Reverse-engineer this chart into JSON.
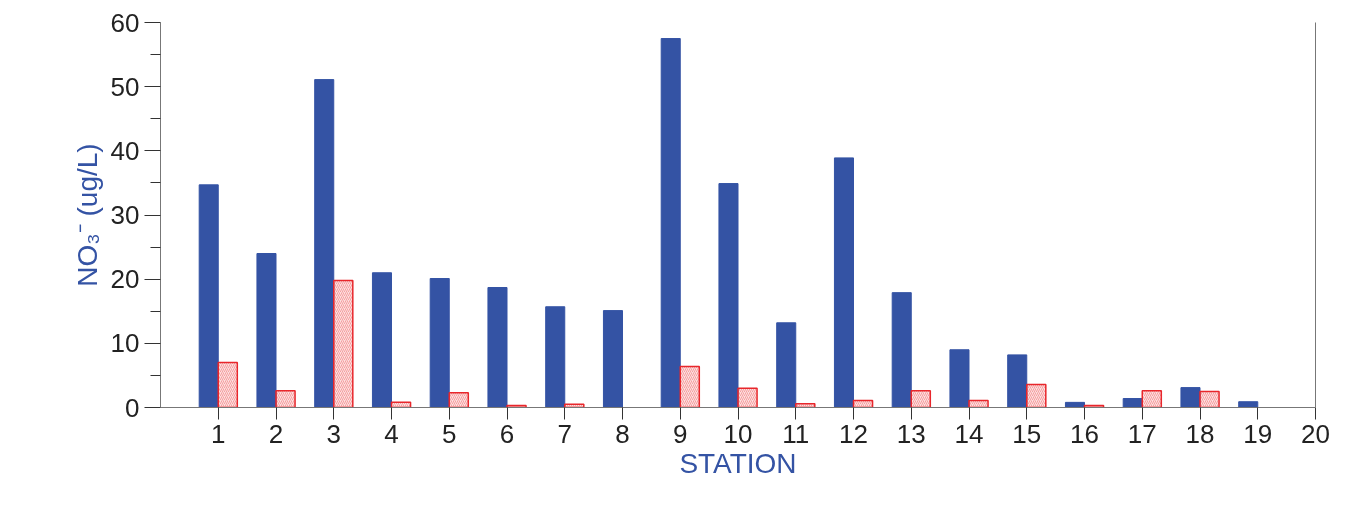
{
  "chart_data": {
    "type": "bar",
    "xlabel": "STATION",
    "ylabel": "NO₃⁻ (ug/L)",
    "x": [
      1,
      2,
      3,
      4,
      5,
      6,
      7,
      8,
      9,
      10,
      11,
      12,
      13,
      14,
      15,
      16,
      17,
      18,
      19
    ],
    "series": [
      {
        "color": "#3453a4",
        "values": [
          34.7,
          24.0,
          51.1,
          21.0,
          20.1,
          18.7,
          15.7,
          15.1,
          57.5,
          34.9,
          13.2,
          38.9,
          17.9,
          9.0,
          8.2,
          0.8,
          1.4,
          3.1,
          0.9
        ]
      },
      {
        "color": "#e8262b",
        "values": [
          7.0,
          2.6,
          19.8,
          0.8,
          2.3,
          0.3,
          0.5,
          null,
          6.4,
          3.0,
          0.6,
          1.1,
          2.6,
          1.1,
          3.6,
          0.3,
          2.6,
          2.5,
          null
        ]
      }
    ],
    "xlim": [
      0,
      20
    ],
    "xticks": [
      1,
      2,
      3,
      4,
      5,
      6,
      7,
      8,
      9,
      10,
      11,
      12,
      13,
      14,
      15,
      16,
      17,
      18,
      19,
      20
    ],
    "ylim": [
      0,
      60
    ],
    "yticks": [
      0,
      {
        "value": 5,
        "label": null
      },
      10,
      {
        "value": 15,
        "label": null
      },
      20,
      {
        "value": 25,
        "label": null
      },
      30,
      {
        "value": 35,
        "label": null
      },
      40,
      {
        "value": 45,
        "label": null
      },
      50,
      {
        "value": 55,
        "label": null
      },
      60
    ],
    "grid": false
  }
}
